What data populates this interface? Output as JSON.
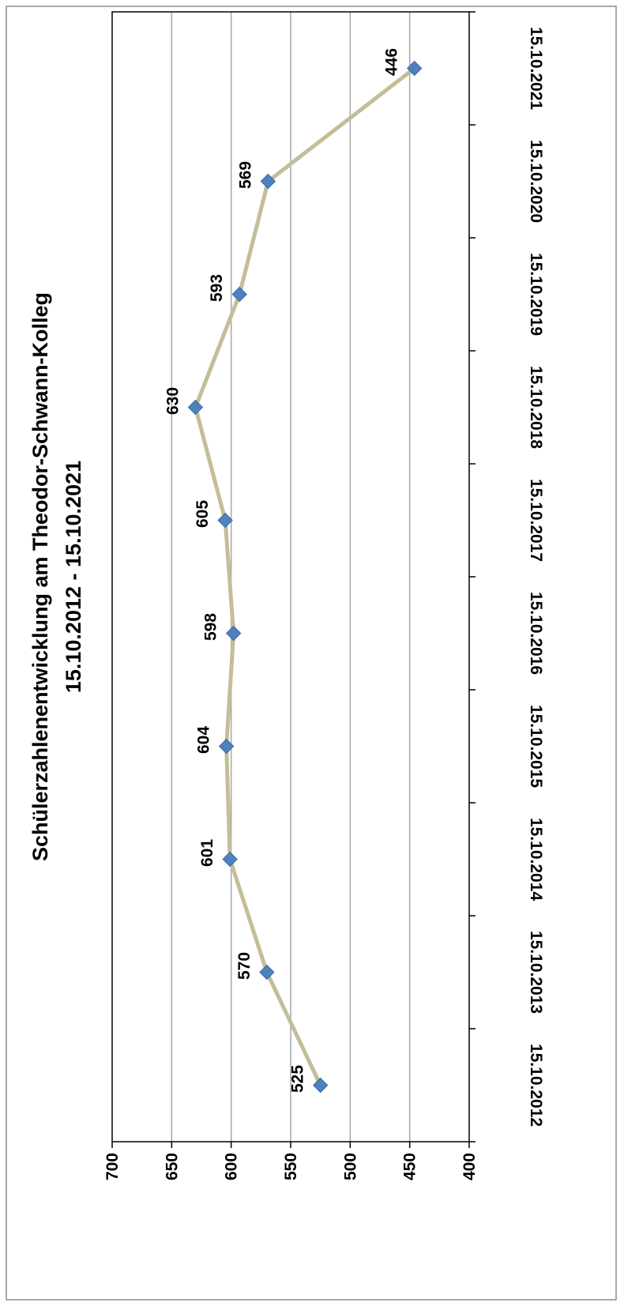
{
  "chart_data": {
    "type": "line",
    "title": "Schülerzahlenentwicklung am Theodor-Schwann-Kolleg",
    "subtitle": "15.10.2012 - 15.10.2021",
    "categories": [
      "15.10.2012",
      "15.10.2013",
      "15.10.2014",
      "15.10.2015",
      "15.10.2016",
      "15.10.2017",
      "15.10.2018",
      "15.10.2019",
      "15.10.2020",
      "15.10.2021"
    ],
    "series": [
      {
        "values": [
          525,
          570,
          601,
          604,
          598,
          605,
          630,
          593,
          569,
          446
        ]
      }
    ],
    "ylim": [
      400,
      700
    ],
    "yticks": [
      700,
      650,
      600,
      550,
      500,
      450,
      400
    ],
    "grid": true,
    "legend": "none",
    "data_labels": true,
    "colors": {
      "line": "#c4bd97",
      "marker": "#4f81bd",
      "grid": "#a6a6a6",
      "text": "#000000"
    }
  }
}
